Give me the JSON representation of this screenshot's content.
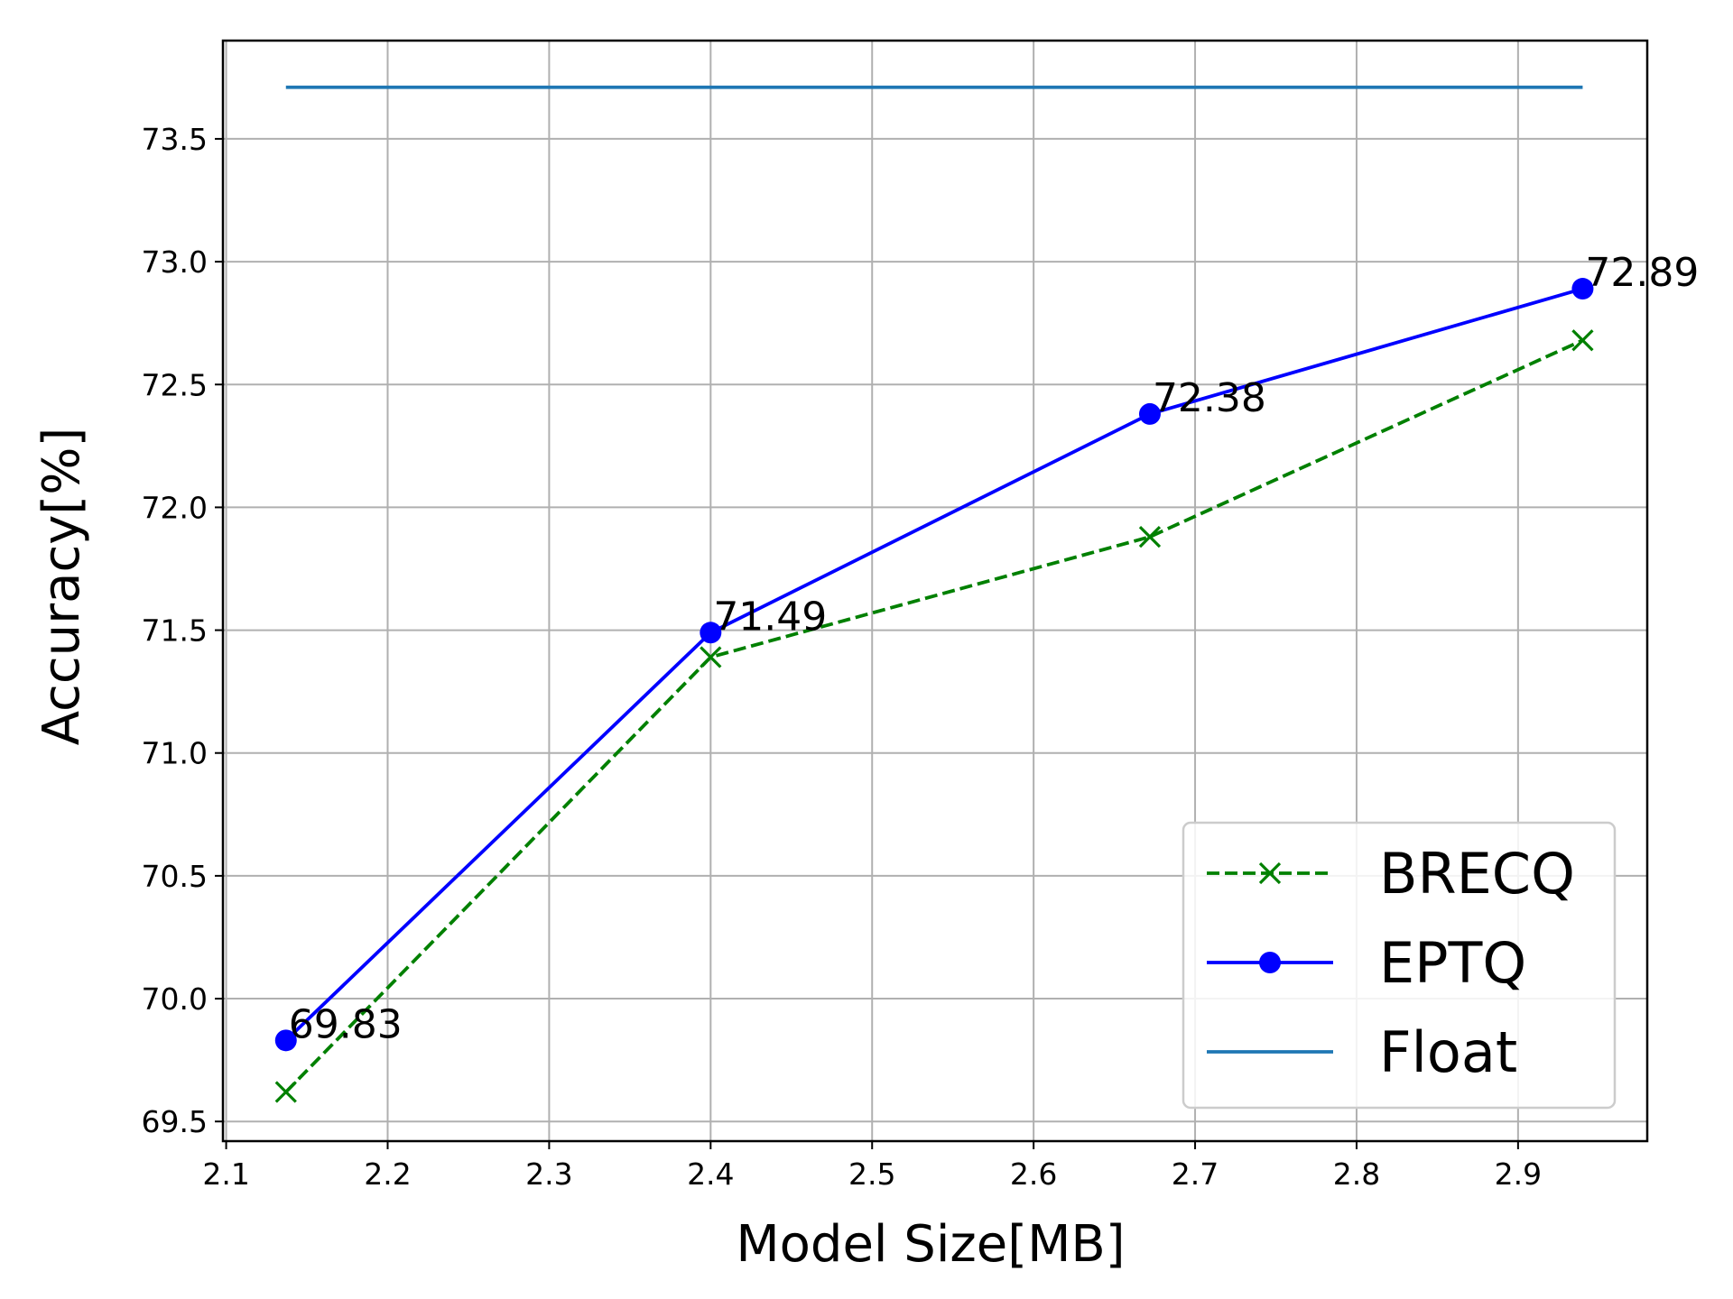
{
  "chart_data": {
    "type": "line",
    "xlabel": "Model Size[MB]",
    "ylabel": "Accuracy[%]",
    "xlim": [
      2.098,
      2.98
    ],
    "ylim": [
      69.42,
      73.9
    ],
    "xticks": [
      2.1,
      2.2,
      2.3,
      2.4,
      2.5,
      2.6,
      2.7,
      2.8,
      2.9
    ],
    "xtick_labels": [
      "2.1",
      "2.2",
      "2.3",
      "2.4",
      "2.5",
      "2.6",
      "2.7",
      "2.8",
      "2.9"
    ],
    "yticks": [
      69.5,
      70.0,
      70.5,
      71.0,
      71.5,
      72.0,
      72.5,
      73.0,
      73.5
    ],
    "ytick_labels": [
      "69.5",
      "70.0",
      "70.5",
      "71.0",
      "71.5",
      "72.0",
      "72.5",
      "73.0",
      "73.5"
    ],
    "grid": true,
    "legend_position": "bottom-right",
    "series": [
      {
        "name": "BRECQ",
        "color": "#008000",
        "line_style": "dashed",
        "marker": "x",
        "x": [
          2.137,
          2.4,
          2.672,
          2.94
        ],
        "y": [
          69.62,
          71.39,
          71.88,
          72.68
        ]
      },
      {
        "name": "EPTQ",
        "color": "#0000ff",
        "line_style": "solid",
        "marker": "circle",
        "x": [
          2.137,
          2.4,
          2.672,
          2.94
        ],
        "y": [
          69.83,
          71.49,
          72.38,
          72.89
        ],
        "labels": [
          "69.83",
          "71.49",
          "72.38",
          "72.89"
        ]
      },
      {
        "name": "Float",
        "color": "#1f77b4",
        "line_style": "solid",
        "marker": "none",
        "x": [
          2.137,
          2.94
        ],
        "y": [
          73.71,
          73.71
        ]
      }
    ]
  }
}
